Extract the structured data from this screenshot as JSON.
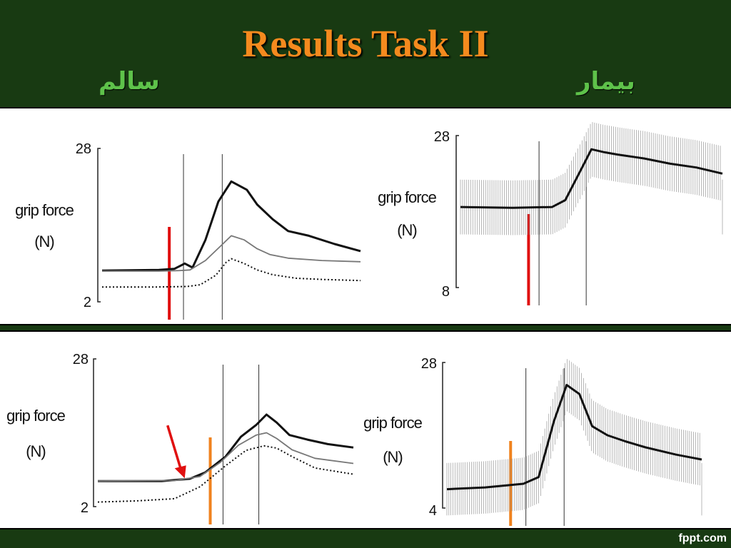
{
  "slide": {
    "title": "Results Task II",
    "label_healthy": "سالم",
    "label_patient": "بیمار",
    "footer": "fppt.com"
  },
  "colors": {
    "background": "#183a12",
    "title": "#f58a1e",
    "arabic_label": "#5ec24a",
    "red_marker": "#e01010",
    "orange_marker": "#f0821e"
  },
  "chart_data": [
    {
      "type": "line",
      "ylabel_line1": "grip force",
      "ylabel_line2": "(N)",
      "ylim": [
        2,
        28
      ],
      "ytick_labels": [
        "28",
        "2"
      ],
      "series": [
        {
          "style": "solid-thick",
          "x": [
            0,
            0.22,
            0.28,
            0.32,
            0.35,
            0.4,
            0.45,
            0.5,
            0.56,
            0.6,
            0.66,
            0.72,
            0.8,
            0.9,
            1.0
          ],
          "y": [
            7.3,
            7.4,
            7.6,
            8.5,
            7.8,
            12.5,
            19.0,
            22.4,
            21.0,
            18.5,
            16.0,
            14.0,
            13.2,
            11.8,
            10.6
          ]
        },
        {
          "style": "solid-thin-gray",
          "x": [
            0,
            0.22,
            0.3,
            0.34,
            0.4,
            0.46,
            0.5,
            0.55,
            0.6,
            0.65,
            0.72,
            0.85,
            1.0
          ],
          "y": [
            7.2,
            7.2,
            7.3,
            7.4,
            9.0,
            11.5,
            13.2,
            12.5,
            11.0,
            10.0,
            9.4,
            9.0,
            8.8
          ]
        },
        {
          "style": "dotted",
          "x": [
            0,
            0.2,
            0.33,
            0.38,
            0.44,
            0.48,
            0.5,
            0.55,
            0.6,
            0.66,
            0.75,
            0.85,
            1.0
          ],
          "y": [
            4.5,
            4.5,
            4.6,
            4.9,
            6.5,
            8.7,
            9.3,
            8.5,
            7.4,
            6.6,
            6.0,
            5.8,
            5.6
          ]
        }
      ],
      "markers": [
        {
          "kind": "red",
          "x": 0.26
        },
        {
          "kind": "line",
          "x": 0.315
        },
        {
          "kind": "line",
          "x": 0.465
        }
      ]
    },
    {
      "type": "line",
      "ylabel_line1": "grip force",
      "ylabel_line2": "(N)",
      "ylim": [
        8,
        28
      ],
      "ytick_labels": [
        "28",
        "8"
      ],
      "series": [
        {
          "style": "solid-thick-errorbars",
          "x": [
            0,
            0.2,
            0.35,
            0.4,
            0.46,
            0.5,
            0.55,
            0.6,
            0.7,
            0.8,
            0.9,
            1.0
          ],
          "y": [
            18.6,
            18.5,
            18.6,
            19.5,
            23.5,
            26.2,
            25.8,
            25.5,
            25.0,
            24.3,
            23.8,
            23.0
          ]
        }
      ],
      "markers": [
        {
          "kind": "red",
          "x": 0.26
        },
        {
          "kind": "line",
          "x": 0.3
        },
        {
          "kind": "line",
          "x": 0.48
        }
      ]
    },
    {
      "type": "line",
      "ylabel_line1": "grip force",
      "ylabel_line2": "(N)",
      "ylim": [
        2,
        28
      ],
      "ytick_labels": [
        "28",
        "2"
      ],
      "series": [
        {
          "style": "solid-thick",
          "x": [
            0,
            0.25,
            0.36,
            0.42,
            0.5,
            0.56,
            0.62,
            0.66,
            0.7,
            0.75,
            0.82,
            0.9,
            1.0
          ],
          "y": [
            6.5,
            6.5,
            6.9,
            8.0,
            10.8,
            14.3,
            16.4,
            18.2,
            16.8,
            14.6,
            13.8,
            13.0,
            12.4
          ]
        },
        {
          "style": "solid-thin-gray",
          "x": [
            0,
            0.3,
            0.4,
            0.48,
            0.55,
            0.62,
            0.66,
            0.7,
            0.76,
            0.85,
            1.0
          ],
          "y": [
            6.5,
            6.6,
            7.3,
            9.8,
            12.8,
            14.6,
            15.0,
            14.0,
            12.0,
            10.5,
            9.6
          ]
        },
        {
          "style": "dotted",
          "x": [
            0,
            0.15,
            0.3,
            0.4,
            0.5,
            0.58,
            0.65,
            0.7,
            0.76,
            0.85,
            1.0
          ],
          "y": [
            2.8,
            3.0,
            3.4,
            5.5,
            9.2,
            11.9,
            12.7,
            12.3,
            10.8,
            8.8,
            7.7
          ]
        }
      ],
      "markers": [
        {
          "kind": "orange",
          "x": 0.44
        },
        {
          "kind": "line",
          "x": 0.49
        },
        {
          "kind": "line",
          "x": 0.63
        }
      ],
      "arrow": {
        "x": 0.34,
        "y": 7.0
      }
    },
    {
      "type": "line",
      "ylabel_line1": "grip force",
      "ylabel_line2": "(N)",
      "ylim": [
        4,
        28
      ],
      "ytick_labels": [
        "28",
        "4"
      ],
      "series": [
        {
          "style": "solid-thick-errorbars",
          "x": [
            0,
            0.15,
            0.3,
            0.36,
            0.42,
            0.47,
            0.52,
            0.57,
            0.63,
            0.7,
            0.78,
            0.9,
            1.0
          ],
          "y": [
            7.1,
            7.4,
            8.0,
            9.1,
            18.3,
            24.3,
            22.8,
            17.5,
            16.0,
            15.0,
            14.0,
            12.8,
            12.0
          ]
        }
      ],
      "markers": [
        {
          "kind": "orange",
          "x": 0.25
        },
        {
          "kind": "line",
          "x": 0.31
        },
        {
          "kind": "line",
          "x": 0.46
        }
      ]
    }
  ]
}
